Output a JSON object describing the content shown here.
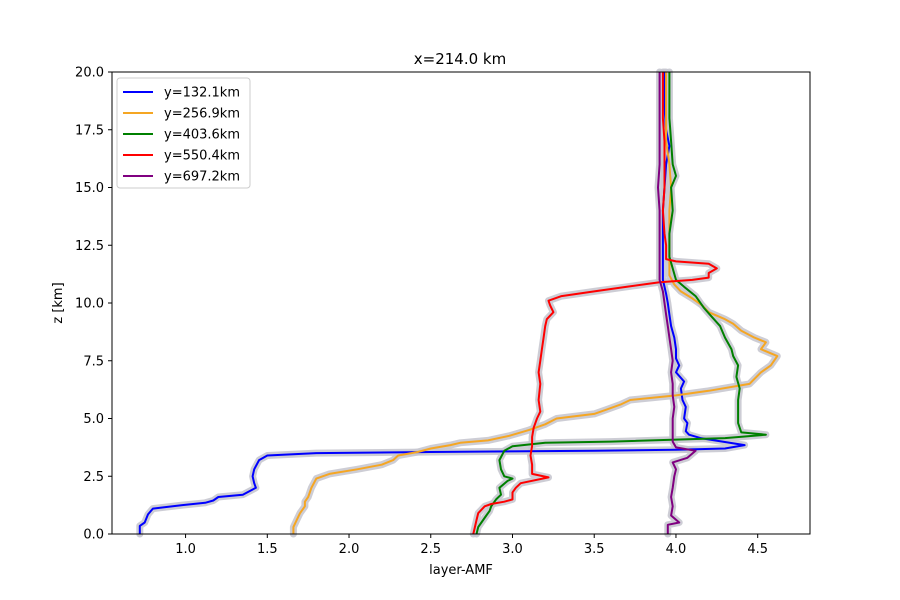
{
  "chart_data": {
    "type": "line",
    "title": "x=214.0 km",
    "xlabel": "layer-AMF",
    "ylabel": "z [km]",
    "xlim": [
      0.55,
      4.82
    ],
    "ylim": [
      0,
      20
    ],
    "xticks": [
      "1.0",
      "1.5",
      "2.0",
      "2.5",
      "3.0",
      "3.5",
      "4.0",
      "4.5"
    ],
    "yticks": [
      "0.0",
      "2.5",
      "5.0",
      "7.5",
      "10.0",
      "12.5",
      "15.0",
      "17.5",
      "20.0"
    ],
    "grid": false,
    "legend_position": "top-left",
    "uncertainty_band_color": "#c8c8d0",
    "series": [
      {
        "name": "y=132.1km",
        "color": "#0000ff",
        "points": [
          [
            0.72,
            0.0
          ],
          [
            0.72,
            0.35
          ],
          [
            0.75,
            0.5
          ],
          [
            0.77,
            0.85
          ],
          [
            0.8,
            1.1
          ],
          [
            0.98,
            1.25
          ],
          [
            1.12,
            1.35
          ],
          [
            1.17,
            1.45
          ],
          [
            1.2,
            1.6
          ],
          [
            1.35,
            1.7
          ],
          [
            1.43,
            2.0
          ],
          [
            1.42,
            2.2
          ],
          [
            1.41,
            2.5
          ],
          [
            1.42,
            2.8
          ],
          [
            1.45,
            3.2
          ],
          [
            1.5,
            3.4
          ],
          [
            1.8,
            3.5
          ],
          [
            2.5,
            3.55
          ],
          [
            3.5,
            3.6
          ],
          [
            4.0,
            3.65
          ],
          [
            4.3,
            3.7
          ],
          [
            4.42,
            3.85
          ],
          [
            4.15,
            4.15
          ],
          [
            4.08,
            4.3
          ],
          [
            4.06,
            4.45
          ],
          [
            4.07,
            4.8
          ],
          [
            4.05,
            5.0
          ],
          [
            4.06,
            5.5
          ],
          [
            4.04,
            5.8
          ],
          [
            4.03,
            6.3
          ],
          [
            4.05,
            6.6
          ],
          [
            4.0,
            7.0
          ],
          [
            4.02,
            7.3
          ],
          [
            4.0,
            7.6
          ],
          [
            4.0,
            8.0
          ],
          [
            3.99,
            8.5
          ],
          [
            3.97,
            9.0
          ],
          [
            3.96,
            9.5
          ],
          [
            3.95,
            10.0
          ],
          [
            3.94,
            10.4
          ],
          [
            3.93,
            10.7
          ],
          [
            3.92,
            11.0
          ],
          [
            3.92,
            12.0
          ],
          [
            3.92,
            13.0
          ],
          [
            3.92,
            14.0
          ],
          [
            3.93,
            15.0
          ],
          [
            3.94,
            16.0
          ],
          [
            3.96,
            16.8
          ],
          [
            3.94,
            17.5
          ],
          [
            3.93,
            18.5
          ],
          [
            3.93,
            20.0
          ]
        ]
      },
      {
        "name": "y=256.9km",
        "color": "#f5a623",
        "points": [
          [
            1.66,
            0.0
          ],
          [
            1.66,
            0.3
          ],
          [
            1.68,
            0.6
          ],
          [
            1.7,
            0.9
          ],
          [
            1.73,
            1.2
          ],
          [
            1.73,
            1.4
          ],
          [
            1.75,
            1.6
          ],
          [
            1.77,
            2.0
          ],
          [
            1.8,
            2.4
          ],
          [
            1.88,
            2.6
          ],
          [
            2.05,
            2.8
          ],
          [
            2.2,
            3.0
          ],
          [
            2.27,
            3.2
          ],
          [
            2.3,
            3.4
          ],
          [
            2.42,
            3.55
          ],
          [
            2.5,
            3.7
          ],
          [
            2.62,
            3.85
          ],
          [
            2.68,
            3.95
          ],
          [
            2.85,
            4.05
          ],
          [
            2.98,
            4.25
          ],
          [
            3.1,
            4.5
          ],
          [
            3.2,
            4.75
          ],
          [
            3.27,
            5.0
          ],
          [
            3.5,
            5.2
          ],
          [
            3.58,
            5.4
          ],
          [
            3.66,
            5.6
          ],
          [
            3.72,
            5.8
          ],
          [
            4.0,
            6.0
          ],
          [
            4.2,
            6.2
          ],
          [
            4.45,
            6.5
          ],
          [
            4.52,
            7.0
          ],
          [
            4.58,
            7.3
          ],
          [
            4.62,
            7.7
          ],
          [
            4.52,
            8.0
          ],
          [
            4.55,
            8.3
          ],
          [
            4.48,
            8.5
          ],
          [
            4.4,
            8.8
          ],
          [
            4.35,
            9.1
          ],
          [
            4.3,
            9.3
          ],
          [
            4.2,
            9.6
          ],
          [
            4.16,
            9.9
          ],
          [
            4.1,
            10.2
          ],
          [
            4.03,
            10.5
          ],
          [
            3.99,
            10.8
          ],
          [
            3.96,
            11.2
          ],
          [
            3.96,
            12.0
          ],
          [
            3.96,
            13.0
          ],
          [
            3.96,
            14.0
          ],
          [
            3.97,
            15.0
          ],
          [
            3.96,
            16.0
          ],
          [
            3.94,
            17.0
          ],
          [
            3.94,
            18.0
          ],
          [
            3.94,
            20.0
          ]
        ]
      },
      {
        "name": "y=403.6km",
        "color": "#008000",
        "points": [
          [
            2.78,
            0.0
          ],
          [
            2.79,
            0.3
          ],
          [
            2.81,
            0.5
          ],
          [
            2.84,
            0.8
          ],
          [
            2.86,
            1.0
          ],
          [
            2.87,
            1.2
          ],
          [
            2.9,
            1.5
          ],
          [
            2.93,
            1.7
          ],
          [
            2.92,
            2.0
          ],
          [
            2.97,
            2.3
          ],
          [
            3.0,
            2.4
          ],
          [
            2.95,
            2.5
          ],
          [
            2.93,
            2.8
          ],
          [
            2.92,
            3.2
          ],
          [
            2.95,
            3.6
          ],
          [
            3.0,
            3.8
          ],
          [
            3.2,
            3.95
          ],
          [
            3.6,
            4.0
          ],
          [
            4.3,
            4.15
          ],
          [
            4.55,
            4.3
          ],
          [
            4.4,
            4.4
          ],
          [
            4.38,
            4.8
          ],
          [
            4.38,
            5.3
          ],
          [
            4.38,
            5.8
          ],
          [
            4.39,
            6.3
          ],
          [
            4.37,
            6.8
          ],
          [
            4.38,
            7.3
          ],
          [
            4.35,
            7.7
          ],
          [
            4.34,
            8.0
          ],
          [
            4.3,
            8.5
          ],
          [
            4.27,
            9.0
          ],
          [
            4.22,
            9.4
          ],
          [
            4.17,
            9.8
          ],
          [
            4.12,
            10.3
          ],
          [
            4.05,
            10.7
          ],
          [
            4.0,
            11.0
          ],
          [
            3.98,
            11.5
          ],
          [
            3.96,
            12.0
          ],
          [
            3.96,
            13.0
          ],
          [
            3.98,
            14.0
          ],
          [
            3.97,
            15.0
          ],
          [
            4.0,
            15.5
          ],
          [
            3.98,
            16.0
          ],
          [
            3.97,
            17.0
          ],
          [
            3.96,
            18.0
          ],
          [
            3.96,
            20.0
          ]
        ]
      },
      {
        "name": "y=550.4km",
        "color": "#ff0000",
        "points": [
          [
            2.76,
            0.0
          ],
          [
            2.77,
            0.3
          ],
          [
            2.78,
            0.6
          ],
          [
            2.79,
            0.9
          ],
          [
            2.83,
            1.2
          ],
          [
            2.87,
            1.3
          ],
          [
            2.95,
            1.4
          ],
          [
            3.0,
            1.5
          ],
          [
            3.0,
            1.8
          ],
          [
            3.02,
            2.0
          ],
          [
            3.05,
            2.2
          ],
          [
            3.22,
            2.45
          ],
          [
            3.12,
            2.6
          ],
          [
            3.12,
            3.0
          ],
          [
            3.11,
            3.4
          ],
          [
            3.12,
            3.8
          ],
          [
            3.12,
            4.2
          ],
          [
            3.13,
            4.6
          ],
          [
            3.15,
            5.0
          ],
          [
            3.17,
            5.3
          ],
          [
            3.16,
            5.8
          ],
          [
            3.17,
            6.5
          ],
          [
            3.16,
            7.0
          ],
          [
            3.17,
            7.5
          ],
          [
            3.18,
            8.0
          ],
          [
            3.19,
            8.5
          ],
          [
            3.2,
            9.0
          ],
          [
            3.21,
            9.3
          ],
          [
            3.25,
            9.6
          ],
          [
            3.23,
            9.9
          ],
          [
            3.22,
            10.1
          ],
          [
            3.3,
            10.3
          ],
          [
            3.5,
            10.5
          ],
          [
            3.7,
            10.7
          ],
          [
            3.9,
            10.9
          ],
          [
            4.1,
            11.0
          ],
          [
            4.2,
            11.1
          ],
          [
            4.2,
            11.3
          ],
          [
            4.25,
            11.5
          ],
          [
            4.2,
            11.7
          ],
          [
            4.0,
            11.8
          ],
          [
            3.94,
            11.9
          ],
          [
            3.94,
            12.5
          ],
          [
            3.93,
            13.0
          ],
          [
            3.92,
            14.0
          ],
          [
            3.93,
            15.0
          ],
          [
            3.93,
            16.0
          ],
          [
            3.93,
            17.0
          ],
          [
            3.92,
            18.0
          ],
          [
            3.92,
            20.0
          ]
        ]
      },
      {
        "name": "y=697.2km",
        "color": "#800080",
        "points": [
          [
            3.95,
            0.0
          ],
          [
            3.95,
            0.4
          ],
          [
            4.02,
            0.5
          ],
          [
            3.97,
            0.8
          ],
          [
            3.98,
            1.2
          ],
          [
            3.97,
            1.6
          ],
          [
            3.98,
            2.0
          ],
          [
            3.99,
            2.5
          ],
          [
            4.0,
            2.8
          ],
          [
            3.98,
            3.1
          ],
          [
            4.07,
            3.3
          ],
          [
            4.12,
            3.6
          ],
          [
            4.0,
            3.75
          ],
          [
            3.98,
            4.0
          ],
          [
            3.98,
            4.5
          ],
          [
            3.98,
            5.0
          ],
          [
            3.99,
            5.5
          ],
          [
            3.98,
            6.0
          ],
          [
            3.98,
            6.5
          ],
          [
            3.97,
            7.0
          ],
          [
            3.98,
            7.5
          ],
          [
            3.97,
            8.0
          ],
          [
            3.96,
            8.5
          ],
          [
            3.95,
            9.0
          ],
          [
            3.94,
            9.5
          ],
          [
            3.93,
            10.0
          ],
          [
            3.92,
            10.5
          ],
          [
            3.9,
            11.0
          ],
          [
            3.9,
            12.0
          ],
          [
            3.9,
            13.0
          ],
          [
            3.9,
            14.0
          ],
          [
            3.89,
            15.0
          ],
          [
            3.9,
            16.0
          ],
          [
            3.9,
            17.0
          ],
          [
            3.9,
            18.0
          ],
          [
            3.9,
            20.0
          ]
        ]
      }
    ]
  }
}
